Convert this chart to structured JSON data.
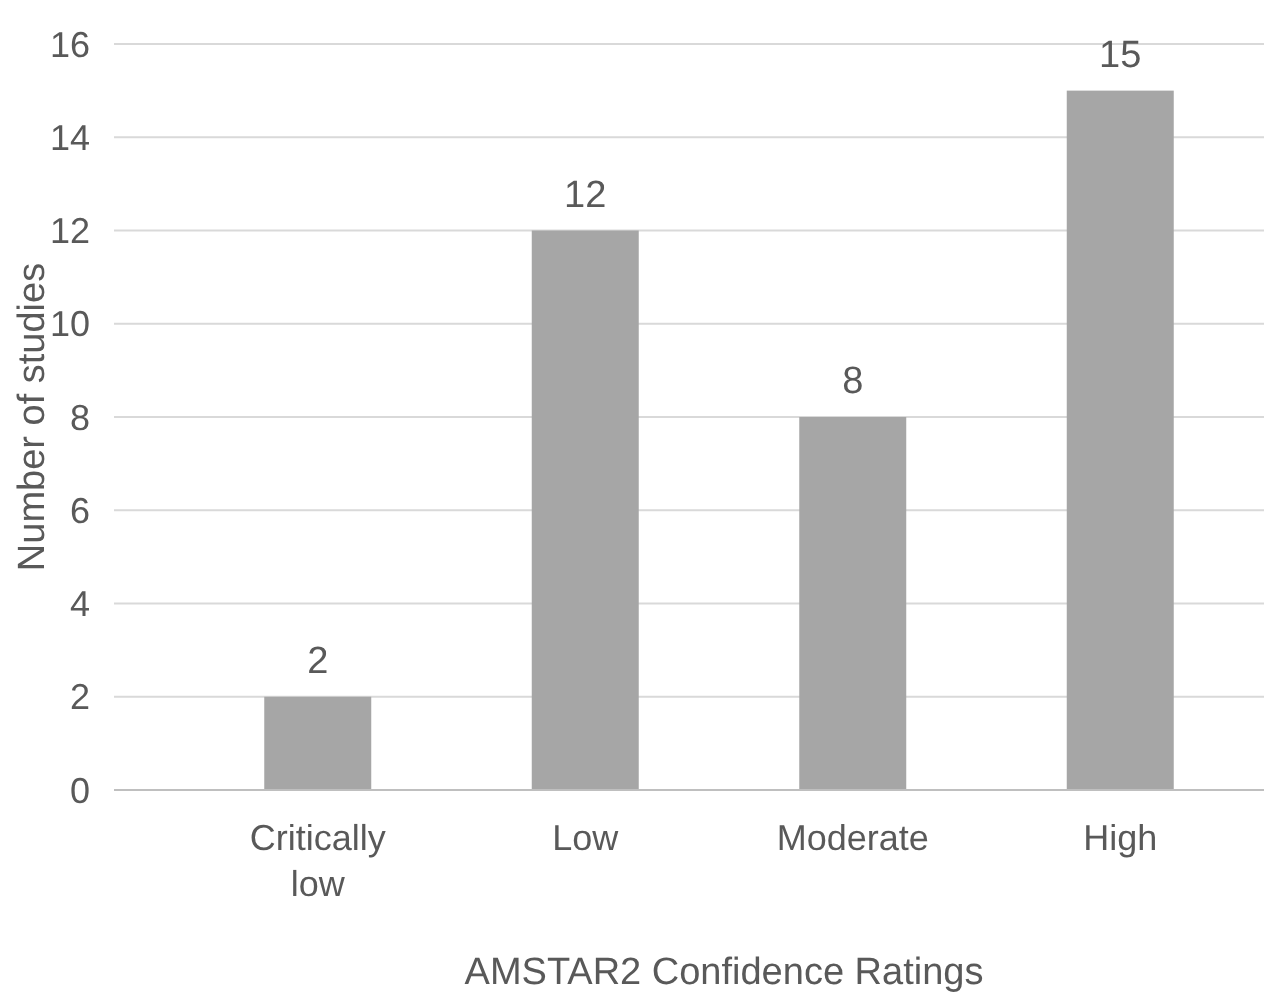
{
  "chart_data": {
    "type": "bar",
    "xlabel": "AMSTAR2 Confidence Ratings",
    "ylabel": "Number of studies",
    "categories": [
      "Critically low",
      "Low",
      "Moderate",
      "High"
    ],
    "values": [
      2,
      12,
      8,
      15
    ],
    "color": "#a6a6a6",
    "data_labels": true,
    "ylim": [
      0,
      16
    ],
    "yticks": [
      0,
      2,
      4,
      6,
      8,
      10,
      12,
      14,
      16
    ],
    "grid": "y"
  }
}
